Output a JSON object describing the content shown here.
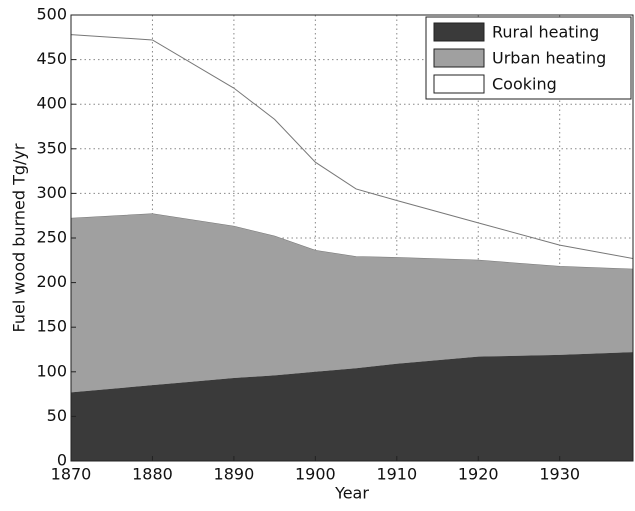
{
  "chart_data": {
    "type": "stacked_area",
    "x_label": "Year",
    "y_label": "Fuel wood burned Tg/yr",
    "x": [
      1870,
      1880,
      1890,
      1895,
      1900,
      1905,
      1910,
      1920,
      1930,
      1939
    ],
    "series": [
      {
        "name": "Rural heating",
        "color": "#3a3a3a",
        "values": [
          77,
          85,
          93,
          96,
          100,
          104,
          109,
          117,
          119,
          122
        ]
      },
      {
        "name": "Urban heating",
        "color": "#a0a0a0",
        "values": [
          195,
          192,
          170,
          156,
          136,
          125,
          119,
          108,
          99,
          93
        ]
      },
      {
        "name": "Cooking",
        "color": "#ffffff",
        "values": [
          206,
          195,
          155,
          131,
          99,
          76,
          64,
          42,
          24,
          12
        ]
      }
    ],
    "xlim": [
      1870,
      1939
    ],
    "xticks": [
      1870,
      1880,
      1890,
      1900,
      1910,
      1920,
      1930
    ],
    "ylim": [
      0,
      500
    ],
    "yticks": [
      0,
      50,
      100,
      150,
      200,
      250,
      300,
      350,
      400,
      450,
      500
    ],
    "grid": true,
    "legend": "upper right"
  }
}
